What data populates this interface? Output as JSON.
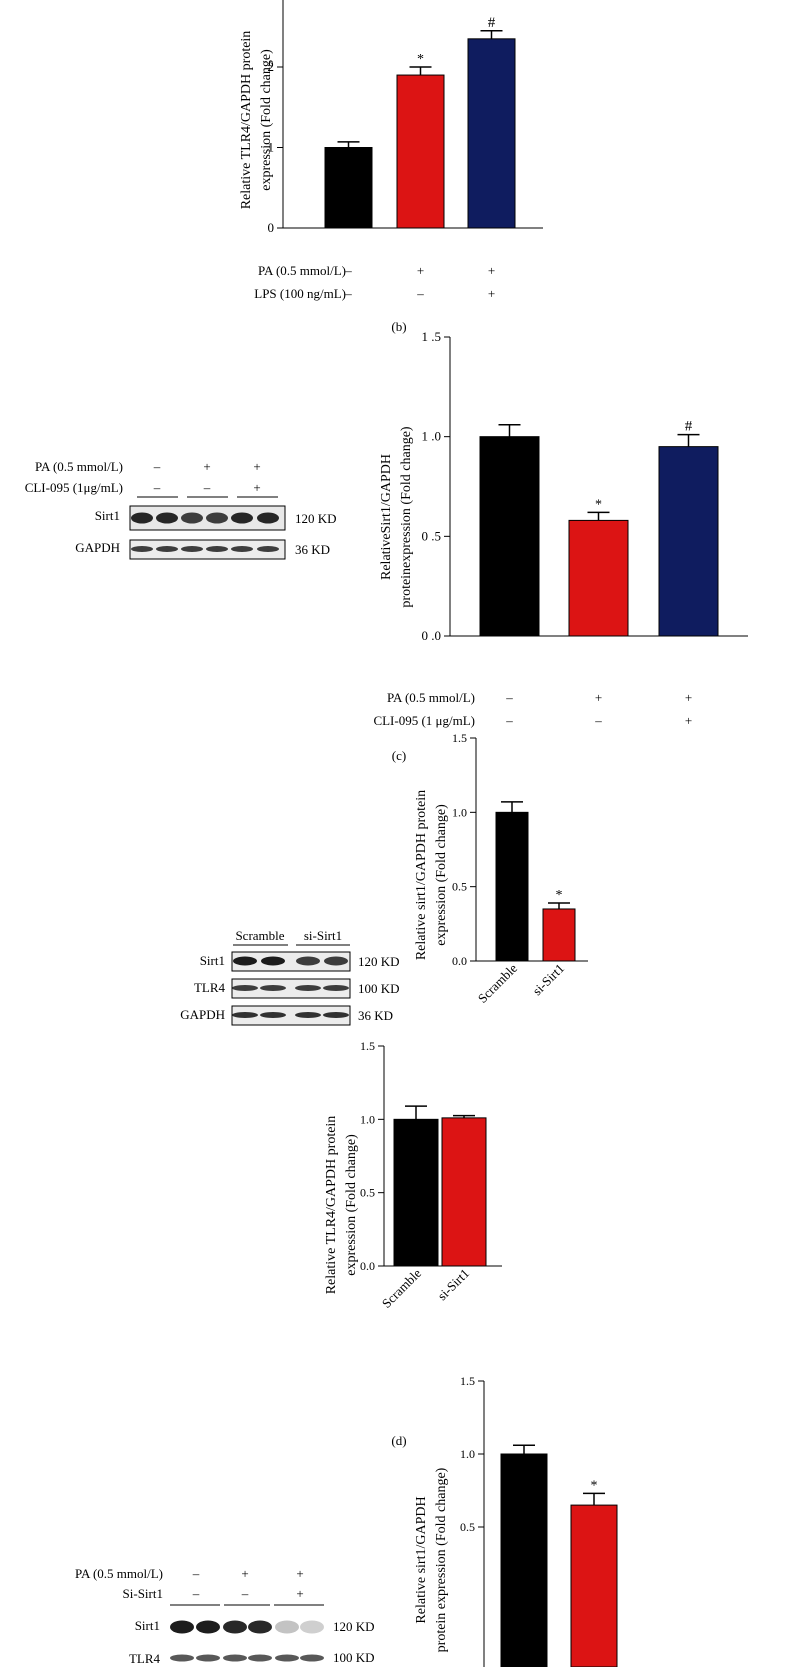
{
  "colors": {
    "black": "#000000",
    "red": "#dc1414",
    "navy": "#0f1c5f"
  },
  "panel_labels": {
    "b": "(b)",
    "c": "(c)",
    "d": "(d)"
  },
  "chart_data": [
    {
      "id": "b",
      "type": "bar",
      "ylabel": [
        "Relative TLR4/GAPDH protein",
        "expression (Fold change)"
      ],
      "yticks": [
        0,
        1,
        2
      ],
      "ylim": [
        0,
        3
      ],
      "values": [
        1.0,
        1.9,
        2.35
      ],
      "errors": [
        0.07,
        0.1,
        0.1
      ],
      "colors": [
        "#000000",
        "#dc1414",
        "#0f1c5f"
      ],
      "annotations": [
        "",
        "*",
        "#"
      ],
      "conditions": [
        {
          "label": "PA (0.5 mmol/L)",
          "marks": [
            "–",
            "+",
            "+"
          ]
        },
        {
          "label": "LPS (100 ng/mL)",
          "marks": [
            "–",
            "–",
            "+"
          ]
        }
      ]
    },
    {
      "id": "c",
      "type": "bar",
      "ylabel": [
        "RelativeSirt1/GAPDH",
        "proteinexpression (Fold change)"
      ],
      "yticks": [
        "0 .0",
        "0 .5",
        "1 .0",
        "1 .5"
      ],
      "ylim": [
        0,
        1.5
      ],
      "values": [
        1.0,
        0.58,
        0.95
      ],
      "errors": [
        0.06,
        0.04,
        0.06
      ],
      "colors": [
        "#000000",
        "#dc1414",
        "#0f1c5f"
      ],
      "annotations": [
        "",
        "*",
        "#"
      ],
      "conditions": [
        {
          "label": "PA (0.5 mmol/L)",
          "marks": [
            "–",
            "+",
            "+"
          ]
        },
        {
          "label": "CLI-095 (1 μg/mL)",
          "marks": [
            "–",
            "–",
            "+"
          ]
        }
      ]
    },
    {
      "id": "d1",
      "type": "bar",
      "ylabel": [
        "Relative sirt1/GAPDH protein",
        "expression (Fold change)"
      ],
      "yticks": [
        "0.0",
        "0.5",
        "1.0",
        "1.5"
      ],
      "ylim": [
        0,
        1.5
      ],
      "categories": [
        "Scramble",
        "si-Sirt1"
      ],
      "values": [
        1.0,
        0.35
      ],
      "errors": [
        0.07,
        0.04
      ],
      "colors": [
        "#000000",
        "#dc1414"
      ],
      "annotations": [
        "",
        "*"
      ]
    },
    {
      "id": "d2",
      "type": "bar",
      "ylabel": [
        "Relative TLR4/GAPDH protein",
        "expression (Fold change)"
      ],
      "yticks": [
        "0.0",
        "0.5",
        "1.0",
        "1.5"
      ],
      "ylim": [
        0,
        1.5
      ],
      "categories": [
        "Scramble",
        "si-Sirt1"
      ],
      "values": [
        1.0,
        1.01
      ],
      "errors": [
        0.09,
        0.015
      ],
      "colors": [
        "#000000",
        "#dc1414"
      ],
      "annotations": [
        "",
        ""
      ]
    },
    {
      "id": "e",
      "type": "bar",
      "ylabel": [
        "Relative sirt1/GAPDH",
        "protein expression (Fold change)"
      ],
      "yticks": [
        "0.5",
        "1.0",
        "1.5"
      ],
      "ylim": [
        0,
        1.5
      ],
      "values": [
        1.0,
        0.65
      ],
      "errors": [
        0.06,
        0.08
      ],
      "colors": [
        "#000000",
        "#dc1414"
      ],
      "annotations": [
        "",
        "*"
      ]
    }
  ],
  "blots": {
    "c": {
      "conditions": [
        {
          "label": "PA (0.5 mmol/L)",
          "marks": [
            "–",
            "+",
            "+"
          ]
        },
        {
          "label": "CLI-095 (1μg/mL)",
          "marks": [
            "–",
            "–",
            "+"
          ]
        }
      ],
      "rows": [
        {
          "name": "Sirt1",
          "kd": "120 KD"
        },
        {
          "name": "GAPDH",
          "kd": "36 KD"
        }
      ]
    },
    "d": {
      "groups": [
        "Scramble",
        "si-Sirt1"
      ],
      "rows": [
        {
          "name": "Sirt1",
          "kd": "120 KD"
        },
        {
          "name": "TLR4",
          "kd": "100 KD"
        },
        {
          "name": "GAPDH",
          "kd": "36 KD"
        }
      ]
    },
    "e": {
      "conditions": [
        {
          "label": "PA (0.5 mmol/L)",
          "marks": [
            "–",
            "+",
            "+"
          ]
        },
        {
          "label": "Si-Sirt1",
          "marks": [
            "–",
            "–",
            "+"
          ]
        }
      ],
      "rows": [
        {
          "name": "Sirt1",
          "kd": "120 KD"
        },
        {
          "name": "TLR4",
          "kd": "100 KD"
        }
      ]
    }
  }
}
